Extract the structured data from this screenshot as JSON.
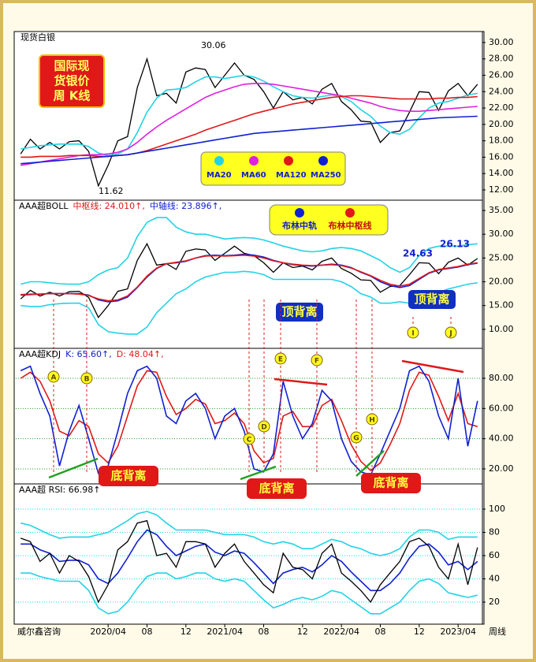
{
  "chart_data": [
    {
      "type": "line",
      "title": "现货白银",
      "ylim": [
        10.94,
        31.15
      ],
      "yticks": [
        {
          "value": 12,
          "label": "12.00"
        },
        {
          "value": 14,
          "label": "14.00"
        },
        {
          "value": 16,
          "label": "16.00"
        },
        {
          "value": 18,
          "label": "18.00"
        },
        {
          "value": 20,
          "label": "20.00"
        },
        {
          "value": 22,
          "label": "22.00"
        },
        {
          "value": 24,
          "label": "24.00"
        },
        {
          "value": 26,
          "label": "26.00"
        },
        {
          "value": 28,
          "label": "28.00"
        },
        {
          "value": 30,
          "label": "30.00"
        }
      ],
      "grid": false,
      "label_box": [
        "国际现",
        "货银价",
        "周 K线"
      ],
      "annotations": [
        "30.06",
        "11.62"
      ],
      "series": [
        {
          "color": "#000000",
          "values": [
            16.4,
            18.2,
            17.0,
            17.8,
            17.0,
            17.9,
            18.0,
            16.7,
            12.5,
            15.0,
            18.0,
            18.5,
            24.5,
            28.0,
            23.5,
            23.8,
            22.6,
            26.4,
            26.9,
            26.7,
            24.5,
            26.0,
            27.5,
            26.0,
            25.5,
            24.0,
            22.0,
            24.0,
            23.0,
            23.3,
            22.5,
            24.3,
            25.0,
            22.8,
            21.8,
            20.4,
            20.3,
            17.8,
            19.0,
            19.2,
            21.5,
            24.0,
            23.9,
            21.7,
            24.1,
            25.0,
            23.5,
            24.9
          ]
        },
        {
          "name": "MA20",
          "color": "#22d3e6",
          "values": [
            17.0,
            17.2,
            17.4,
            17.5,
            17.6,
            17.6,
            17.6,
            17.3,
            16.5,
            16.2,
            16.4,
            17.0,
            19.0,
            21.5,
            23.2,
            24.2,
            24.3,
            24.5,
            25.2,
            25.8,
            25.8,
            25.6,
            25.8,
            26.0,
            25.8,
            25.3,
            24.6,
            24.0,
            23.5,
            23.3,
            23.2,
            23.4,
            23.6,
            23.4,
            22.8,
            21.8,
            21.0,
            19.8,
            19.0,
            18.8,
            19.4,
            20.8,
            22.0,
            22.6,
            22.8,
            23.2,
            23.6,
            23.8
          ]
        },
        {
          "name": "MA60",
          "color": "#e020e0",
          "values": [
            15.0,
            15.2,
            15.4,
            15.6,
            15.8,
            16.0,
            16.2,
            16.3,
            16.3,
            16.4,
            16.6,
            17.0,
            17.8,
            18.8,
            19.7,
            20.5,
            21.2,
            21.9,
            22.6,
            23.3,
            23.8,
            24.2,
            24.6,
            24.9,
            25.0,
            25.0,
            24.9,
            24.7,
            24.5,
            24.3,
            24.1,
            23.9,
            23.7,
            23.5,
            23.2,
            22.9,
            22.6,
            22.2,
            21.9,
            21.7,
            21.6,
            21.6,
            21.7,
            21.8,
            21.9,
            22.0,
            22.1,
            22.2
          ]
        },
        {
          "name": "MA120",
          "color": "#e01818",
          "values": [
            16.0,
            16.0,
            16.1,
            16.1,
            16.1,
            16.2,
            16.2,
            16.2,
            16.1,
            16.1,
            16.2,
            16.3,
            16.5,
            16.8,
            17.2,
            17.6,
            18.0,
            18.4,
            18.8,
            19.3,
            19.7,
            20.1,
            20.5,
            20.9,
            21.3,
            21.6,
            21.9,
            22.2,
            22.5,
            22.7,
            22.9,
            23.1,
            23.3,
            23.4,
            23.5,
            23.5,
            23.4,
            23.3,
            23.2,
            23.1,
            23.1,
            23.1,
            23.1,
            23.2,
            23.2,
            23.3,
            23.3,
            23.4
          ]
        },
        {
          "name": "MA250",
          "color": "#1020d0",
          "values": [
            15.2,
            15.3,
            15.4,
            15.5,
            15.6,
            15.7,
            15.8,
            15.9,
            16.0,
            16.1,
            16.2,
            16.3,
            16.5,
            16.7,
            16.9,
            17.1,
            17.3,
            17.5,
            17.7,
            17.9,
            18.1,
            18.3,
            18.5,
            18.7,
            18.9,
            19.0,
            19.1,
            19.2,
            19.3,
            19.4,
            19.5,
            19.6,
            19.7,
            19.8,
            19.9,
            20.0,
            20.1,
            20.2,
            20.3,
            20.4,
            20.5,
            20.6,
            20.7,
            20.8,
            20.85,
            20.9,
            20.95,
            21.0
          ]
        }
      ]
    },
    {
      "type": "line",
      "header": [
        "AAA超BOLL",
        "中枢线: 24.010↑,",
        "中轴线: 23.896↑,"
      ],
      "ylim": [
        6.0,
        37.0
      ],
      "yticks": [
        {
          "value": 10,
          "label": "10.00"
        },
        {
          "value": 15,
          "label": "15.00"
        },
        {
          "value": 20,
          "label": "20.00"
        },
        {
          "value": 25,
          "label": "25.00"
        },
        {
          "value": 30,
          "label": "30.00"
        },
        {
          "value": 35,
          "label": "35.00"
        }
      ],
      "grid": false,
      "annotations": [
        "24.63",
        "26.13",
        "顶背离",
        "顶背离"
      ],
      "series": [
        {
          "color": "#22d3e6",
          "values": [
            19.5,
            20.0,
            20.0,
            19.8,
            19.6,
            19.5,
            19.5,
            20.0,
            21.5,
            22.5,
            23.0,
            25.0,
            29.5,
            32.5,
            33.5,
            33.5,
            31.5,
            30.5,
            30.0,
            30.0,
            29.5,
            29.0,
            29.2,
            29.3,
            29.2,
            28.8,
            28.2,
            27.5,
            27.0,
            26.5,
            26.3,
            26.5,
            27.0,
            27.2,
            27.0,
            26.5,
            25.5,
            24.5,
            23.0,
            22.0,
            23.0,
            25.5,
            27.0,
            27.5,
            27.5,
            27.5,
            27.8,
            28.0
          ]
        },
        {
          "color": "#22d3e6",
          "values": [
            15.0,
            14.8,
            14.8,
            15.2,
            15.4,
            15.5,
            15.5,
            14.5,
            11.0,
            9.5,
            9.2,
            9.0,
            9.0,
            10.5,
            13.5,
            15.5,
            17.5,
            18.5,
            20.0,
            21.0,
            21.5,
            22.0,
            22.0,
            22.2,
            22.0,
            21.5,
            20.5,
            20.5,
            20.5,
            20.5,
            20.5,
            20.5,
            20.5,
            20.0,
            19.0,
            17.5,
            16.8,
            15.5,
            15.5,
            15.8,
            15.5,
            15.5,
            16.5,
            17.8,
            18.5,
            19.0,
            19.5,
            19.8
          ]
        },
        {
          "color": "#000000",
          "values": [
            16.4,
            18.2,
            17.0,
            17.8,
            17.0,
            17.9,
            18.0,
            16.7,
            12.5,
            15.0,
            18.0,
            18.5,
            24.5,
            28.0,
            23.5,
            23.8,
            22.6,
            26.4,
            26.9,
            26.7,
            24.5,
            26.0,
            27.5,
            26.0,
            25.5,
            24.0,
            22.0,
            24.0,
            23.0,
            23.3,
            22.5,
            24.3,
            25.0,
            22.8,
            21.8,
            20.4,
            20.3,
            17.8,
            19.0,
            19.2,
            21.5,
            24.0,
            23.9,
            21.7,
            24.1,
            25.0,
            23.5,
            24.9
          ]
        },
        {
          "name": "布林中轨",
          "color": "#1020d0",
          "values": [
            17.2,
            17.3,
            17.4,
            17.5,
            17.5,
            17.5,
            17.5,
            17.2,
            16.2,
            15.8,
            16.0,
            16.8,
            18.8,
            21.0,
            22.8,
            23.8,
            24.0,
            24.3,
            25.0,
            25.5,
            25.6,
            25.5,
            25.6,
            25.8,
            25.6,
            25.2,
            24.5,
            24.0,
            23.6,
            23.4,
            23.3,
            23.5,
            23.7,
            23.5,
            23.0,
            22.0,
            21.2,
            20.0,
            19.2,
            18.8,
            19.2,
            20.5,
            21.8,
            22.5,
            22.8,
            23.1,
            23.6,
            23.9
          ]
        },
        {
          "name": "布林中枢线",
          "color": "#e01818",
          "values": [
            17.3,
            17.4,
            17.4,
            17.5,
            17.5,
            17.5,
            17.4,
            17.1,
            16.4,
            16.0,
            16.2,
            17.0,
            18.9,
            21.2,
            22.9,
            23.8,
            24.1,
            24.4,
            25.0,
            25.4,
            25.5,
            25.4,
            25.5,
            25.6,
            25.4,
            25.0,
            24.4,
            24.0,
            23.7,
            23.5,
            23.4,
            23.5,
            23.6,
            23.4,
            22.9,
            22.1,
            21.3,
            20.3,
            19.5,
            19.1,
            19.5,
            20.7,
            21.9,
            22.6,
            22.9,
            23.2,
            23.7,
            24.0
          ]
        }
      ]
    },
    {
      "type": "line",
      "header": [
        "AAA超KDJ",
        "K: 65.60↑,",
        "D: 48.04↑,"
      ],
      "ylim": [
        10.6,
        99.3
      ],
      "yticks": [
        {
          "value": 20,
          "label": "20.00"
        },
        {
          "value": 40,
          "label": "40.00"
        },
        {
          "value": 60,
          "label": "60.00"
        },
        {
          "value": 80,
          "label": "80.00"
        }
      ],
      "grid": true,
      "grid_color": "#22a022",
      "markers": [
        "A",
        "B",
        "C",
        "D",
        "E",
        "F",
        "G",
        "H",
        "I",
        "J"
      ],
      "annotations": [
        "底背离",
        "底背离",
        "底背离"
      ],
      "series": [
        {
          "color": "#e01818",
          "values": [
            80,
            84,
            78,
            65,
            45,
            42,
            52,
            48,
            30,
            24,
            35,
            55,
            75,
            85,
            84,
            68,
            56,
            60,
            66,
            63,
            50,
            52,
            57,
            50,
            32,
            24,
            27,
            55,
            58,
            48,
            48,
            62,
            66,
            52,
            36,
            25,
            19,
            24,
            36,
            50,
            72,
            84,
            82,
            68,
            52,
            70,
            50,
            48
          ]
        },
        {
          "color": "#1020d0",
          "values": [
            85,
            88,
            70,
            55,
            22,
            45,
            62,
            40,
            17,
            22,
            45,
            70,
            85,
            88,
            80,
            55,
            50,
            65,
            70,
            60,
            40,
            55,
            60,
            45,
            20,
            18,
            30,
            78,
            55,
            40,
            50,
            72,
            65,
            40,
            25,
            18,
            16,
            30,
            45,
            60,
            85,
            88,
            78,
            55,
            40,
            80,
            35,
            65
          ]
        }
      ]
    },
    {
      "type": "line",
      "header": [
        "AAA超  RSI: 66.98↑"
      ],
      "ylim": [
        2.4,
        121.0
      ],
      "yticks": [
        20,
        40,
        60,
        80,
        100
      ],
      "grid": true,
      "grid_color": "#22d3e6",
      "categories": [
        null,
        null,
        null,
        null,
        null,
        null,
        null,
        null,
        null,
        "2020/04",
        null,
        null,
        null,
        "08",
        null,
        null,
        null,
        "12",
        null,
        null,
        null,
        "2021/04",
        null,
        null,
        null,
        "08",
        null,
        null,
        null,
        "12",
        null,
        null,
        null,
        "2022/04",
        null,
        null,
        null,
        "08",
        null,
        null,
        null,
        "12",
        null,
        null,
        null,
        "2023/04",
        null,
        null
      ],
      "footer": [
        "威尔鑫咨询",
        "周线"
      ],
      "series": [
        {
          "color": "#22d3e6",
          "values": [
            88,
            86,
            82,
            78,
            75,
            76,
            76,
            76,
            78,
            80,
            85,
            90,
            96,
            98,
            95,
            88,
            82,
            82,
            82,
            82,
            80,
            78,
            78,
            78,
            76,
            72,
            70,
            72,
            70,
            66,
            66,
            70,
            74,
            72,
            68,
            66,
            62,
            60,
            62,
            66,
            76,
            82,
            82,
            80,
            74,
            76,
            76,
            76
          ]
        },
        {
          "color": "#22d3e6",
          "values": [
            45,
            45,
            42,
            40,
            38,
            38,
            38,
            30,
            15,
            10,
            12,
            20,
            32,
            42,
            45,
            45,
            40,
            42,
            45,
            45,
            40,
            38,
            40,
            38,
            30,
            22,
            15,
            18,
            22,
            24,
            22,
            25,
            30,
            28,
            22,
            16,
            10,
            10,
            15,
            20,
            30,
            38,
            40,
            36,
            28,
            26,
            24,
            26
          ]
        },
        {
          "color": "#1020d0",
          "values": [
            70,
            70,
            65,
            62,
            55,
            56,
            56,
            52,
            40,
            36,
            45,
            58,
            72,
            82,
            78,
            68,
            60,
            64,
            68,
            70,
            63,
            60,
            64,
            62,
            54,
            45,
            36,
            45,
            48,
            50,
            46,
            52,
            60,
            55,
            46,
            38,
            30,
            30,
            36,
            45,
            58,
            68,
            70,
            63,
            52,
            55,
            48,
            55
          ]
        },
        {
          "color": "#000000",
          "values": [
            75,
            72,
            55,
            62,
            45,
            60,
            55,
            42,
            20,
            35,
            65,
            72,
            88,
            90,
            60,
            62,
            50,
            72,
            72,
            70,
            50,
            62,
            70,
            55,
            45,
            35,
            28,
            62,
            50,
            48,
            40,
            62,
            70,
            45,
            38,
            30,
            20,
            35,
            45,
            55,
            72,
            75,
            68,
            50,
            40,
            70,
            35,
            67
          ]
        }
      ]
    }
  ]
}
